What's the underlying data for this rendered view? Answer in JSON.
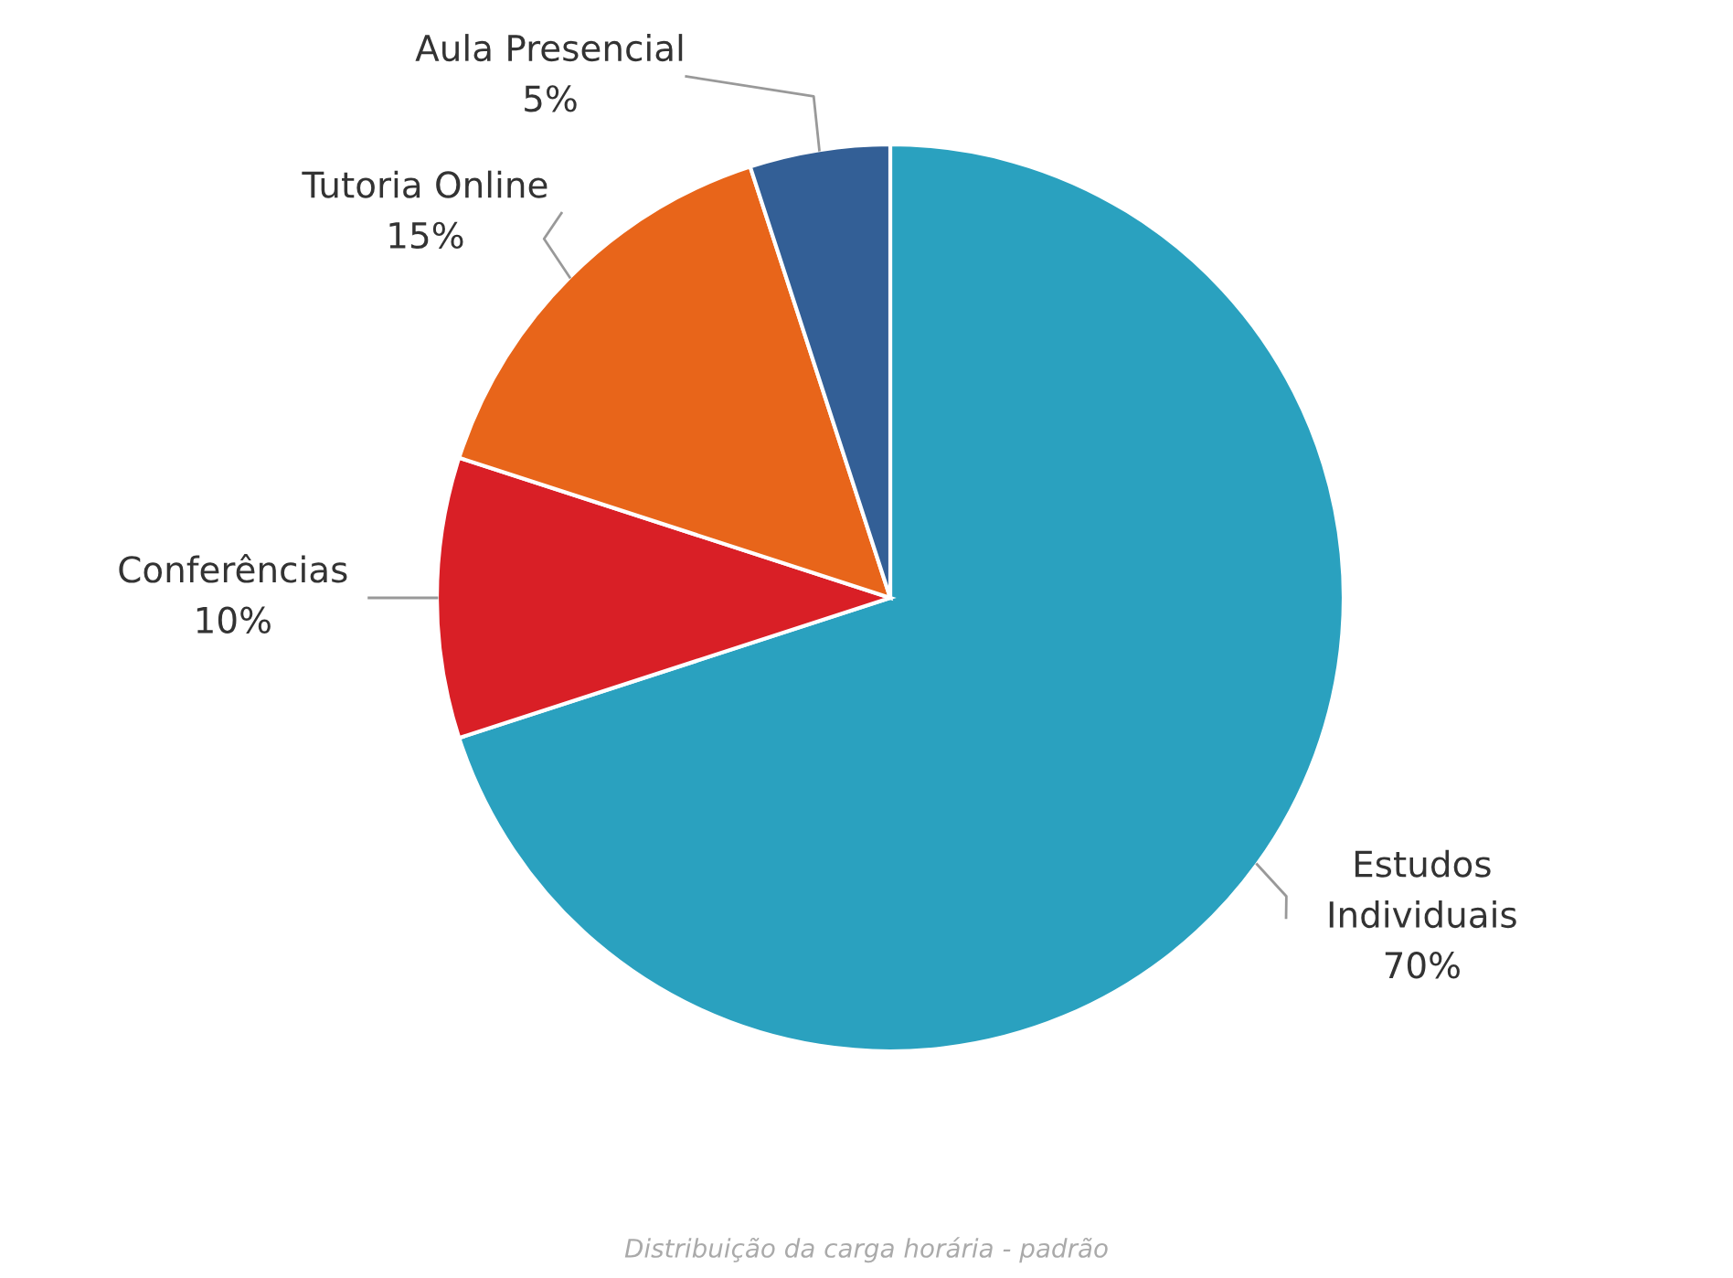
{
  "chart_data": {
    "type": "pie",
    "categories": [
      "Estudos Individuais",
      "Conferências",
      "Tutoria Online",
      "Aula Presencial"
    ],
    "values": [
      70,
      10,
      15,
      5
    ],
    "value_labels": [
      "70%",
      "10%",
      "15%",
      "5%"
    ],
    "colors": [
      "#2aa1bf",
      "#d91f26",
      "#e8651a",
      "#335f96"
    ],
    "legend": false,
    "annotations": [
      "Distribuição da carga horária - padrão"
    ]
  }
}
